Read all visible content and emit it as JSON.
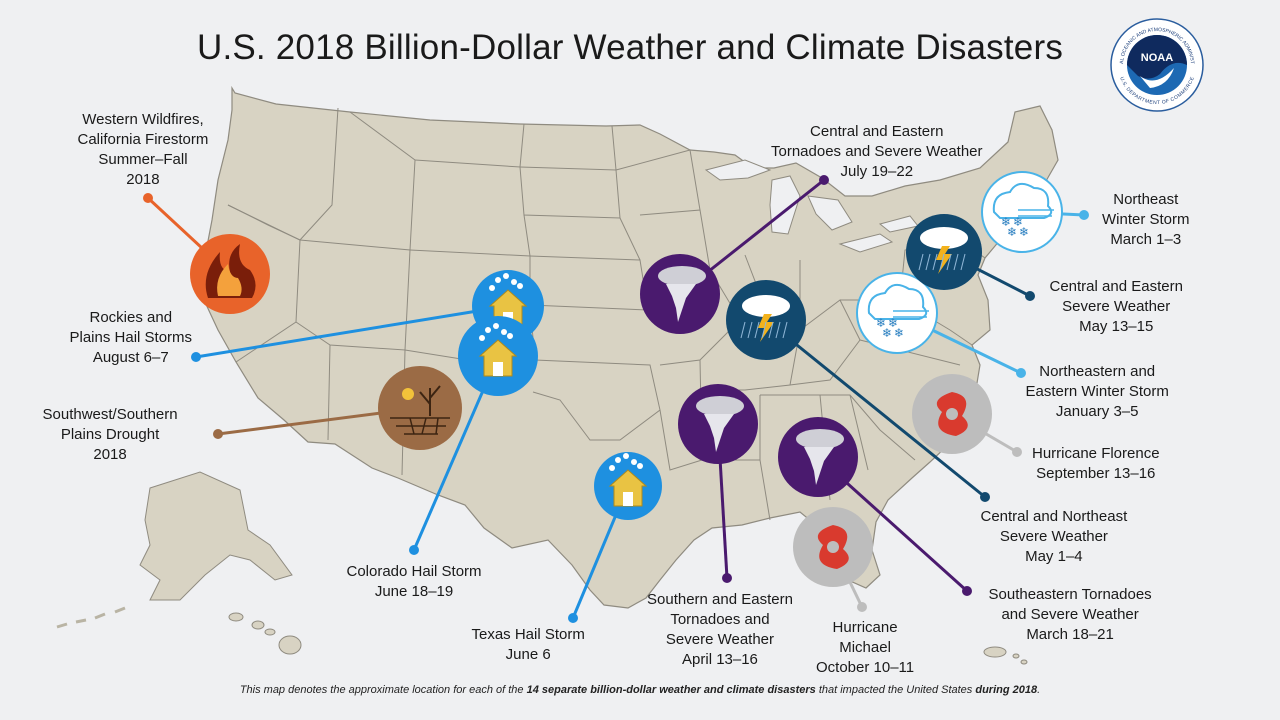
{
  "title": "U.S. 2018 Billion-Dollar Weather and Climate Disasters",
  "logo": {
    "text": "NOAA",
    "ring_top": "NATIONAL OCEANIC AND ATMOSPHERIC ADMINISTRATION",
    "ring_bottom": "U.S. DEPARTMENT OF COMMERCE"
  },
  "colors": {
    "land": "#d8d3c3",
    "state_border": "#8f8b80",
    "wildfire": "#e8632a",
    "hail": "#1e90e0",
    "drought": "#9b6b45",
    "tornado": "#4a1a6e",
    "severe": "#12496e",
    "winter": "#49b3e8",
    "hurricane": "#bdbdbd"
  },
  "events": [
    {
      "id": "western-wildfires",
      "type": "wildfire",
      "label": [
        "Western Wildfires,",
        "California Firestorm",
        "Summer–Fall",
        "2018"
      ]
    },
    {
      "id": "rockies-plains-hail",
      "type": "hail",
      "label": [
        "Rockies and",
        "Plains Hail Storms",
        "August 6–7"
      ]
    },
    {
      "id": "southwest-drought",
      "type": "drought",
      "label": [
        "Southwest/Southern",
        "Plains Drought",
        "2018"
      ]
    },
    {
      "id": "colorado-hail",
      "type": "hail",
      "label": [
        "Colorado Hail Storm",
        "June 18–19"
      ]
    },
    {
      "id": "texas-hail",
      "type": "hail",
      "label": [
        "Texas Hail Storm",
        "June 6"
      ]
    },
    {
      "id": "central-eastern-tornadoes-july",
      "type": "tornado",
      "label": [
        "Central and Eastern",
        "Tornadoes and Severe Weather",
        "July 19–22"
      ]
    },
    {
      "id": "southern-eastern-tornadoes",
      "type": "tornado",
      "label": [
        "Southern and Eastern",
        "Tornadoes and",
        "Severe Weather",
        "April 13–16"
      ]
    },
    {
      "id": "hurricane-michael",
      "type": "hurricane",
      "label": [
        "Hurricane",
        "Michael",
        "October 10–11"
      ]
    },
    {
      "id": "southeastern-tornadoes",
      "type": "tornado",
      "label": [
        "Southeastern Tornadoes",
        "and Severe Weather",
        "March 18–21"
      ]
    },
    {
      "id": "central-northeast-severe",
      "type": "severe",
      "label": [
        "Central and Northeast",
        "Severe Weather",
        "May 1–4"
      ]
    },
    {
      "id": "hurricane-florence",
      "type": "hurricane",
      "label": [
        "Hurricane Florence",
        "September 13–16"
      ]
    },
    {
      "id": "northeastern-winter-storm",
      "type": "winter",
      "label": [
        "Northeastern and",
        "Eastern Winter Storm",
        "January 3–5"
      ]
    },
    {
      "id": "central-eastern-severe-may",
      "type": "severe",
      "label": [
        "Central and Eastern",
        "Severe Weather",
        "May 13–15"
      ]
    },
    {
      "id": "northeast-winter-storm",
      "type": "winter",
      "label": [
        "Northeast",
        "Winter Storm",
        "March 1–3"
      ]
    }
  ],
  "footer": {
    "pre": "This map denotes the approximate location for each of the ",
    "bold1": "14 separate billion-dollar weather and climate disasters",
    "mid": " that impacted the United States ",
    "bold2": "during 2018",
    "post": "."
  }
}
